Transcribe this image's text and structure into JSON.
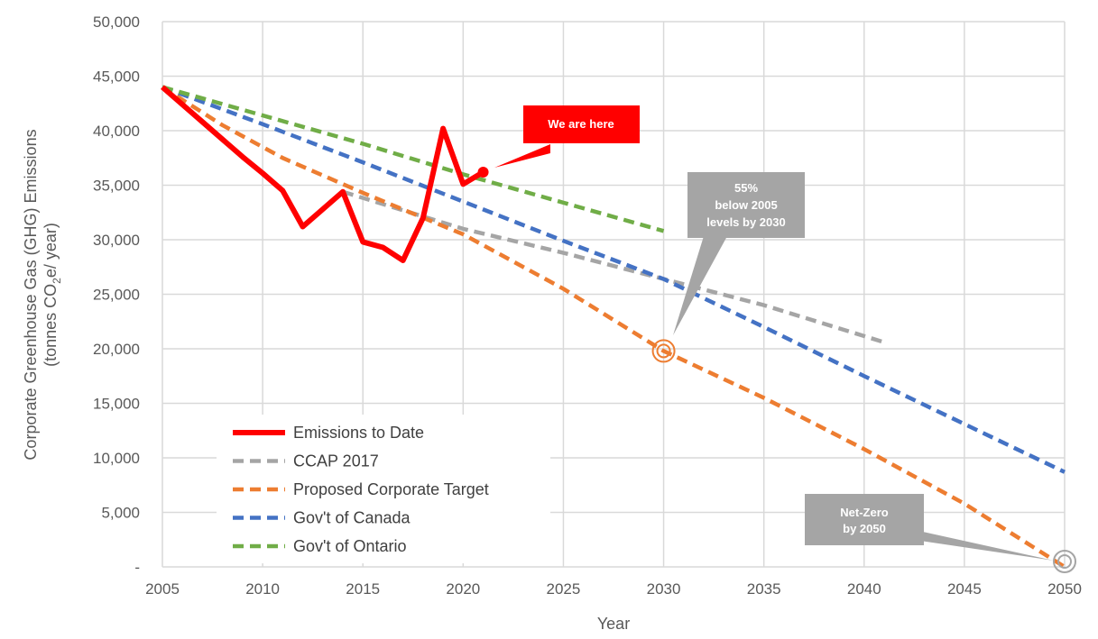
{
  "chart_data": {
    "type": "line",
    "xlabel": "Year",
    "ylabel_line1": "Corporate  Greenhouse Gas (GHG) Emissions",
    "ylabel_line2": "(tonnes CO",
    "ylabel_sub": "2",
    "ylabel_line2_end": "e/ year)",
    "xlim": [
      2005,
      2050
    ],
    "ylim": [
      0,
      50000
    ],
    "xticks": [
      2005,
      2010,
      2015,
      2020,
      2025,
      2030,
      2035,
      2040,
      2045,
      2050
    ],
    "yticks": [
      0,
      5000,
      10000,
      15000,
      20000,
      25000,
      30000,
      35000,
      40000,
      45000,
      50000
    ],
    "ytick_labels": [
      "-",
      "5,000",
      "10,000",
      "15,000",
      "20,000",
      "25,000",
      "30,000",
      "35,000",
      "40,000",
      "45,000",
      "50,000"
    ],
    "grid": true,
    "legend_placement": "bottom-left",
    "series": [
      {
        "name": "Emissions to Date",
        "color": "#ff0000",
        "style": "solid",
        "x": [
          2005,
          2006,
          2007,
          2008,
          2009,
          2010,
          2011,
          2012,
          2014,
          2015,
          2016,
          2017,
          2018,
          2019,
          2020,
          2021
        ],
        "y": [
          44000,
          42400,
          40800,
          39200,
          37600,
          36100,
          34500,
          31200,
          34400,
          29800,
          29300,
          28100,
          32000,
          40200,
          35100,
          36200
        ]
      },
      {
        "name": "CCAP 2017",
        "color": "#a5a5a5",
        "style": "dashed",
        "x": [
          2014,
          2020,
          2025,
          2030,
          2035,
          2041
        ],
        "y": [
          34400,
          31000,
          28800,
          26400,
          24000,
          20600
        ]
      },
      {
        "name": "Proposed Corporate Target",
        "color": "#ed7d31",
        "style": "dashed",
        "x": [
          2005,
          2008,
          2011,
          2015,
          2020,
          2025,
          2030,
          2035,
          2040,
          2045,
          2050
        ],
        "y": [
          44000,
          40500,
          37500,
          34300,
          30500,
          25500,
          19800,
          15500,
          10800,
          5800,
          0
        ]
      },
      {
        "name": "Gov't of Canada",
        "color": "#4472c4",
        "style": "dashed",
        "x": [
          2005,
          2010,
          2015,
          2020,
          2025,
          2030,
          2035,
          2040,
          2045,
          2050
        ],
        "y": [
          44000,
          40600,
          37100,
          33500,
          29900,
          26400,
          22000,
          17500,
          13100,
          8700
        ]
      },
      {
        "name": "Gov't of Ontario",
        "color": "#70ad47",
        "style": "dashed",
        "x": [
          2005,
          2010,
          2015,
          2020,
          2025,
          2030
        ],
        "y": [
          44000,
          41400,
          38800,
          36000,
          33400,
          30800
        ]
      }
    ],
    "annotations": [
      {
        "lines": [
          "We are here"
        ],
        "color": "#ff0000"
      },
      {
        "lines": [
          "55%",
          "below 2005",
          "levels by 2030"
        ],
        "color": "#a5a5a5"
      },
      {
        "lines": [
          "Net-Zero",
          "by 2050"
        ],
        "color": "#a5a5a5"
      }
    ]
  }
}
